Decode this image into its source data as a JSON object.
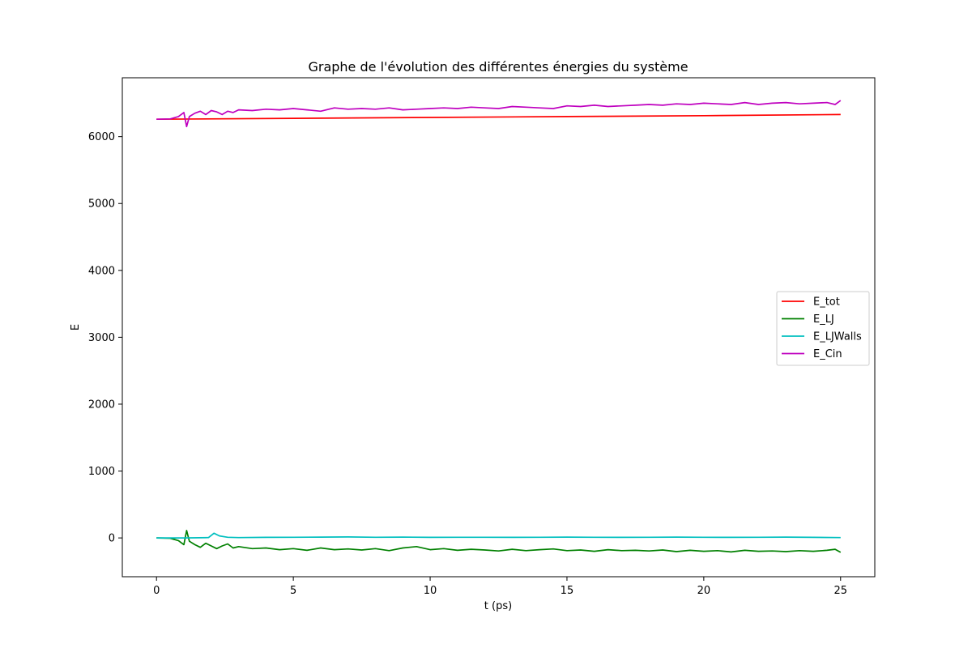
{
  "chart_data": {
    "type": "line",
    "title": "Graphe de l'évolution des différentes énergies du système",
    "xlabel": "t (ps)",
    "ylabel": "E",
    "xlim": [
      -1.25,
      26.25
    ],
    "ylim": [
      -580,
      6880
    ],
    "xticks": [
      0,
      5,
      10,
      15,
      20,
      25
    ],
    "yticks": [
      0,
      1000,
      2000,
      3000,
      4000,
      5000,
      6000
    ],
    "legend": "center-right",
    "grid": false,
    "series": [
      {
        "name": "E_tot",
        "color": "#ff0000",
        "points": [
          [
            0,
            6260
          ],
          [
            5,
            6273
          ],
          [
            10,
            6287
          ],
          [
            15,
            6300
          ],
          [
            20,
            6313
          ],
          [
            25,
            6330
          ]
        ]
      },
      {
        "name": "E_LJ",
        "color": "#008000",
        "points": [
          [
            0,
            0
          ],
          [
            0.5,
            -5
          ],
          [
            0.8,
            -40
          ],
          [
            1.0,
            -100
          ],
          [
            1.1,
            110
          ],
          [
            1.2,
            -50
          ],
          [
            1.4,
            -100
          ],
          [
            1.6,
            -140
          ],
          [
            1.8,
            -80
          ],
          [
            2.0,
            -120
          ],
          [
            2.2,
            -160
          ],
          [
            2.4,
            -120
          ],
          [
            2.6,
            -90
          ],
          [
            2.8,
            -150
          ],
          [
            3.0,
            -130
          ],
          [
            3.5,
            -160
          ],
          [
            4.0,
            -150
          ],
          [
            4.5,
            -175
          ],
          [
            5.0,
            -160
          ],
          [
            5.5,
            -185
          ],
          [
            6.0,
            -150
          ],
          [
            6.5,
            -175
          ],
          [
            7.0,
            -165
          ],
          [
            7.5,
            -180
          ],
          [
            8.0,
            -160
          ],
          [
            8.5,
            -190
          ],
          [
            9.0,
            -150
          ],
          [
            9.5,
            -130
          ],
          [
            10.0,
            -175
          ],
          [
            10.5,
            -160
          ],
          [
            11.0,
            -185
          ],
          [
            11.5,
            -170
          ],
          [
            12.0,
            -180
          ],
          [
            12.5,
            -195
          ],
          [
            13.0,
            -170
          ],
          [
            13.5,
            -190
          ],
          [
            14.0,
            -175
          ],
          [
            14.5,
            -165
          ],
          [
            15.0,
            -190
          ],
          [
            15.5,
            -180
          ],
          [
            16.0,
            -200
          ],
          [
            16.5,
            -175
          ],
          [
            17.0,
            -190
          ],
          [
            17.5,
            -185
          ],
          [
            18.0,
            -195
          ],
          [
            18.5,
            -180
          ],
          [
            19.0,
            -205
          ],
          [
            19.5,
            -185
          ],
          [
            20.0,
            -200
          ],
          [
            20.5,
            -190
          ],
          [
            21.0,
            -210
          ],
          [
            21.5,
            -185
          ],
          [
            22.0,
            -200
          ],
          [
            22.5,
            -195
          ],
          [
            23.0,
            -205
          ],
          [
            23.5,
            -190
          ],
          [
            24.0,
            -200
          ],
          [
            24.5,
            -185
          ],
          [
            24.8,
            -170
          ],
          [
            25.0,
            -215
          ]
        ]
      },
      {
        "name": "E_LJWalls",
        "color": "#00bfbf",
        "points": [
          [
            0,
            0
          ],
          [
            1.0,
            0
          ],
          [
            1.9,
            5
          ],
          [
            2.1,
            70
          ],
          [
            2.3,
            30
          ],
          [
            2.6,
            10
          ],
          [
            3.0,
            5
          ],
          [
            4.0,
            8
          ],
          [
            5.0,
            10
          ],
          [
            6.0,
            12
          ],
          [
            7.0,
            15
          ],
          [
            8.0,
            10
          ],
          [
            9.0,
            12
          ],
          [
            10.0,
            8
          ],
          [
            11.0,
            10
          ],
          [
            12.0,
            10
          ],
          [
            13.0,
            8
          ],
          [
            14.0,
            10
          ],
          [
            15.0,
            12
          ],
          [
            16.0,
            10
          ],
          [
            17.0,
            8
          ],
          [
            18.0,
            10
          ],
          [
            19.0,
            12
          ],
          [
            20.0,
            10
          ],
          [
            21.0,
            8
          ],
          [
            22.0,
            10
          ],
          [
            23.0,
            12
          ],
          [
            24.0,
            8
          ],
          [
            25.0,
            5
          ]
        ]
      },
      {
        "name": "E_Cin",
        "color": "#bf00bf",
        "points": [
          [
            0,
            6260
          ],
          [
            0.5,
            6265
          ],
          [
            0.8,
            6300
          ],
          [
            1.0,
            6360
          ],
          [
            1.1,
            6150
          ],
          [
            1.2,
            6300
          ],
          [
            1.4,
            6350
          ],
          [
            1.6,
            6380
          ],
          [
            1.8,
            6330
          ],
          [
            2.0,
            6390
          ],
          [
            2.2,
            6370
          ],
          [
            2.4,
            6330
          ],
          [
            2.6,
            6380
          ],
          [
            2.8,
            6360
          ],
          [
            3.0,
            6400
          ],
          [
            3.5,
            6390
          ],
          [
            4.0,
            6410
          ],
          [
            4.5,
            6400
          ],
          [
            5.0,
            6420
          ],
          [
            5.5,
            6400
          ],
          [
            6.0,
            6380
          ],
          [
            6.5,
            6430
          ],
          [
            7.0,
            6410
          ],
          [
            7.5,
            6420
          ],
          [
            8.0,
            6410
          ],
          [
            8.5,
            6430
          ],
          [
            9.0,
            6400
          ],
          [
            9.5,
            6410
          ],
          [
            10.0,
            6420
          ],
          [
            10.5,
            6430
          ],
          [
            11.0,
            6420
          ],
          [
            11.5,
            6440
          ],
          [
            12.0,
            6430
          ],
          [
            12.5,
            6420
          ],
          [
            13.0,
            6450
          ],
          [
            13.5,
            6440
          ],
          [
            14.0,
            6430
          ],
          [
            14.5,
            6420
          ],
          [
            15.0,
            6460
          ],
          [
            15.5,
            6450
          ],
          [
            16.0,
            6470
          ],
          [
            16.5,
            6450
          ],
          [
            17.0,
            6460
          ],
          [
            17.5,
            6470
          ],
          [
            18.0,
            6480
          ],
          [
            18.5,
            6470
          ],
          [
            19.0,
            6490
          ],
          [
            19.5,
            6480
          ],
          [
            20.0,
            6500
          ],
          [
            20.5,
            6490
          ],
          [
            21.0,
            6480
          ],
          [
            21.5,
            6510
          ],
          [
            22.0,
            6480
          ],
          [
            22.5,
            6500
          ],
          [
            23.0,
            6510
          ],
          [
            23.5,
            6490
          ],
          [
            24.0,
            6500
          ],
          [
            24.5,
            6510
          ],
          [
            24.8,
            6480
          ],
          [
            25.0,
            6540
          ]
        ]
      }
    ]
  }
}
